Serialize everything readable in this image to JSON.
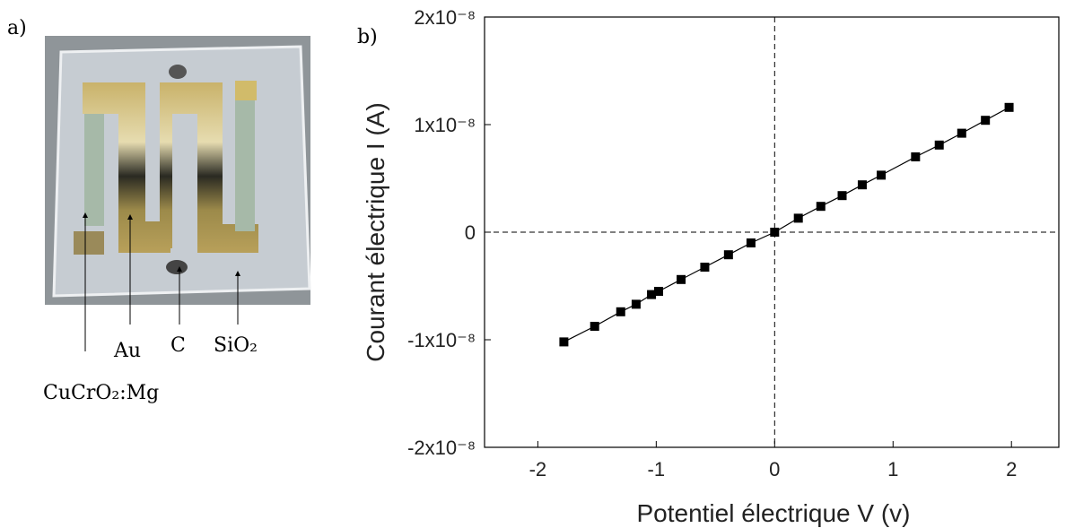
{
  "figure": {
    "panel_a": "a)",
    "panel_b": "b)",
    "photo_labels": [
      "CuCrO₂:Mg",
      "Au",
      "C",
      "SiO₂"
    ]
  },
  "chart_data": {
    "type": "line",
    "x_label": "Potentiel électrique V (v)",
    "y_label": "Courant électrique I (A)",
    "x": [
      -1.78,
      -1.52,
      -1.3,
      -1.17,
      -1.04,
      -0.98,
      -0.79,
      -0.59,
      -0.39,
      -0.2,
      0,
      0.2,
      0.39,
      0.57,
      0.74,
      0.9,
      1.19,
      1.39,
      1.58,
      1.78,
      1.98
    ],
    "values": [
      -1.02e-08,
      -8.75e-09,
      -7.4e-09,
      -6.7e-09,
      -5.8e-09,
      -5.5e-09,
      -4.4e-09,
      -3.25e-09,
      -2.1e-09,
      -1e-09,
      0,
      1.3e-09,
      2.4e-09,
      3.4e-09,
      4.4e-09,
      5.3e-09,
      7e-09,
      8.1e-09,
      9.2e-09,
      1.04e-08,
      1.16e-08
    ],
    "color": "#000000",
    "xlim": [
      -2.45,
      2.4
    ],
    "xticks": [
      -2,
      -1,
      0,
      1,
      2
    ],
    "ylim": [
      -2e-08,
      2e-08
    ],
    "yticks": [
      {
        "value": -2e-08,
        "label": "-2x10⁻⁸"
      },
      {
        "value": -1e-08,
        "label": "-1x10⁻⁸"
      },
      0,
      {
        "value": 1e-08,
        "label": "1x10⁻⁸"
      },
      {
        "value": 2e-08,
        "label": "2x10⁻⁸"
      }
    ]
  }
}
